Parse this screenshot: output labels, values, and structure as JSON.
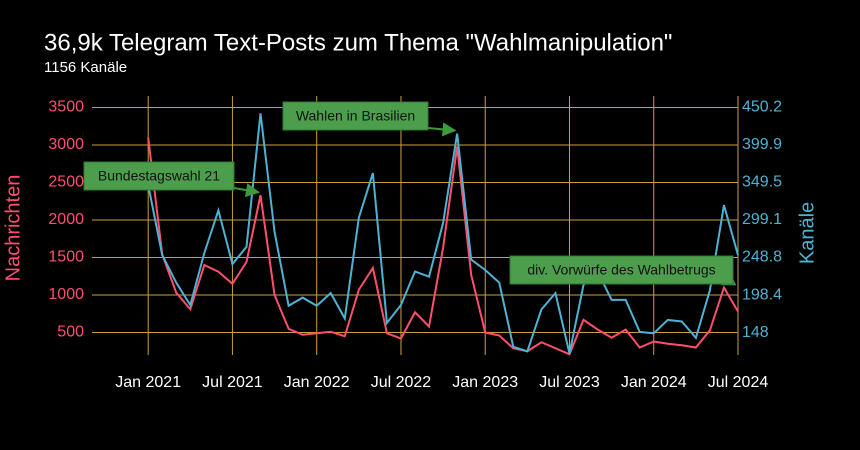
{
  "chart_data": {
    "type": "line",
    "title": "36,9k Telegram Text-Posts zum Thema \"Wahlmanipulation\"",
    "subtitle": "1156 Kanäle",
    "y_label": "Nachrichten",
    "y2_label": "Kanäle",
    "x": [
      "2021-01",
      "2021-02",
      "2021-03",
      "2021-04",
      "2021-05",
      "2021-06",
      "2021-07",
      "2021-08",
      "2021-09",
      "2021-10",
      "2021-11",
      "2021-12",
      "2022-01",
      "2022-02",
      "2022-03",
      "2022-04",
      "2022-05",
      "2022-06",
      "2022-07",
      "2022-08",
      "2022-09",
      "2022-10",
      "2022-11",
      "2022-12",
      "2023-01",
      "2023-02",
      "2023-03",
      "2023-04",
      "2023-05",
      "2023-06",
      "2023-07",
      "2023-08",
      "2023-09",
      "2023-10",
      "2023-11",
      "2023-12",
      "2024-01",
      "2024-02",
      "2024-03",
      "2024-04",
      "2024-05",
      "2024-06",
      "2024-07"
    ],
    "series": [
      {
        "name": "Nachrichten",
        "color": "#ff4f6e",
        "axis": "y",
        "values": [
          3100,
          1540,
          1030,
          810,
          1400,
          1310,
          1150,
          1440,
          2330,
          1000,
          550,
          470,
          490,
          510,
          450,
          1070,
          1360,
          490,
          420,
          770,
          580,
          1630,
          2980,
          1270,
          500,
          460,
          290,
          250,
          370,
          290,
          210,
          670,
          540,
          430,
          540,
          300,
          380,
          350,
          330,
          300,
          530,
          1100,
          780
        ]
      },
      {
        "name": "Kanäle",
        "color": "#4eb3d3",
        "axis": "y2",
        "values": [
          346,
          252,
          215,
          185,
          255,
          312,
          240,
          263,
          442,
          283,
          184,
          195,
          184,
          201,
          167,
          302,
          362,
          161,
          185,
          230,
          223,
          295,
          415,
          246,
          232,
          215,
          129,
          123,
          179,
          201,
          120,
          212,
          230,
          192,
          192,
          149,
          147,
          165,
          163,
          141,
          205,
          319,
          252
        ]
      }
    ],
    "xlim": [
      "2020-09",
      "2024-07"
    ],
    "xticks": [
      {
        "value": "2021-01",
        "label": "Jan 2021"
      },
      {
        "value": "2021-07",
        "label": "Jul 2021"
      },
      {
        "value": "2022-01",
        "label": "Jan 2022"
      },
      {
        "value": "2022-07",
        "label": "Jul 2022"
      },
      {
        "value": "2023-01",
        "label": "Jan 2023"
      },
      {
        "value": "2023-07",
        "label": "Jul 2023"
      },
      {
        "value": "2024-01",
        "label": "Jan 2024"
      },
      {
        "value": "2024-07",
        "label": "Jul 2024"
      }
    ],
    "ylim": [
      200,
      3600
    ],
    "yticks": [
      500,
      1000,
      1500,
      2000,
      2500,
      3000,
      3500
    ],
    "y2lim": [
      118,
      460
    ],
    "y2ticks": [
      148,
      198.4,
      248.8,
      299.1,
      349.5,
      399.9,
      450.2
    ],
    "grid": true,
    "annotations": [
      {
        "text": "Bundestagswahl 21",
        "x": "2021-09",
        "series": 0
      },
      {
        "text": "Wahlen in Brasilien",
        "x": "2022-11",
        "series": 1
      },
      {
        "text": "div. Vorwürfe des Wahlbetrugs",
        "x": "2024-06",
        "series": 0
      }
    ]
  }
}
